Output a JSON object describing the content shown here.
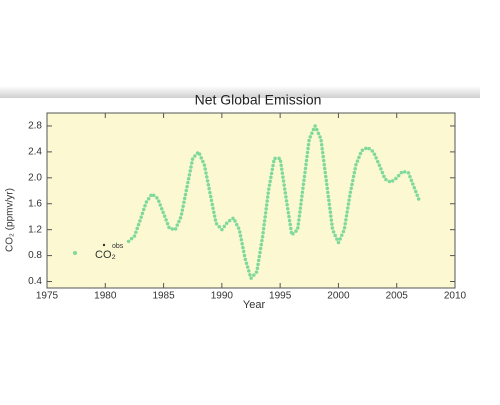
{
  "chart_data": {
    "type": "line",
    "title": "Net Global Emission",
    "x_label": "Year",
    "y_label": "CO₂ (ppmv/yr)",
    "legend_superscript": "obs",
    "xlim": [
      1975,
      2010
    ],
    "xticks": [
      1975,
      1980,
      1985,
      1990,
      1995,
      2000,
      2005,
      2010
    ],
    "ylim": [
      0.3,
      3.0
    ],
    "yticks": [
      0.4,
      0.8,
      1.2,
      1.6,
      {
        "value": 2,
        "label": "2.0"
      },
      2.4,
      2.8
    ],
    "legend": "left",
    "x": [
      1982,
      1982.5,
      1983,
      1983.5,
      1984,
      1984.5,
      1985,
      1985.5,
      1986,
      1986.5,
      1987,
      1987.5,
      1988,
      1988.5,
      1989,
      1989.5,
      1990,
      1990.5,
      1991,
      1991.5,
      1992,
      1992.5,
      1993,
      1993.5,
      1994,
      1994.5,
      1995,
      1995.5,
      1996,
      1996.5,
      1997,
      1997.5,
      1998,
      1998.5,
      1999,
      1999.5,
      2000,
      2000.5,
      2001,
      2001.5,
      2002,
      2002.5,
      2003,
      2003.5,
      2004,
      2004.5,
      2005,
      2005.5,
      2006,
      2006.5,
      2007
    ],
    "series": [
      {
        "name": "CO₂",
        "color": "#7ed99a",
        "values": [
          1.02,
          1.1,
          1.35,
          1.62,
          1.75,
          1.68,
          1.45,
          1.22,
          1.2,
          1.4,
          1.85,
          2.3,
          2.4,
          2.2,
          1.75,
          1.3,
          1.2,
          1.32,
          1.38,
          1.2,
          0.75,
          0.45,
          0.55,
          1.1,
          1.8,
          2.3,
          2.3,
          1.7,
          1.12,
          1.2,
          1.9,
          2.6,
          2.8,
          2.6,
          1.9,
          1.2,
          1.0,
          1.2,
          1.75,
          2.2,
          2.42,
          2.47,
          2.4,
          2.2,
          1.98,
          1.93,
          2.0,
          2.1,
          2.08,
          1.85,
          1.62
        ]
      }
    ]
  }
}
